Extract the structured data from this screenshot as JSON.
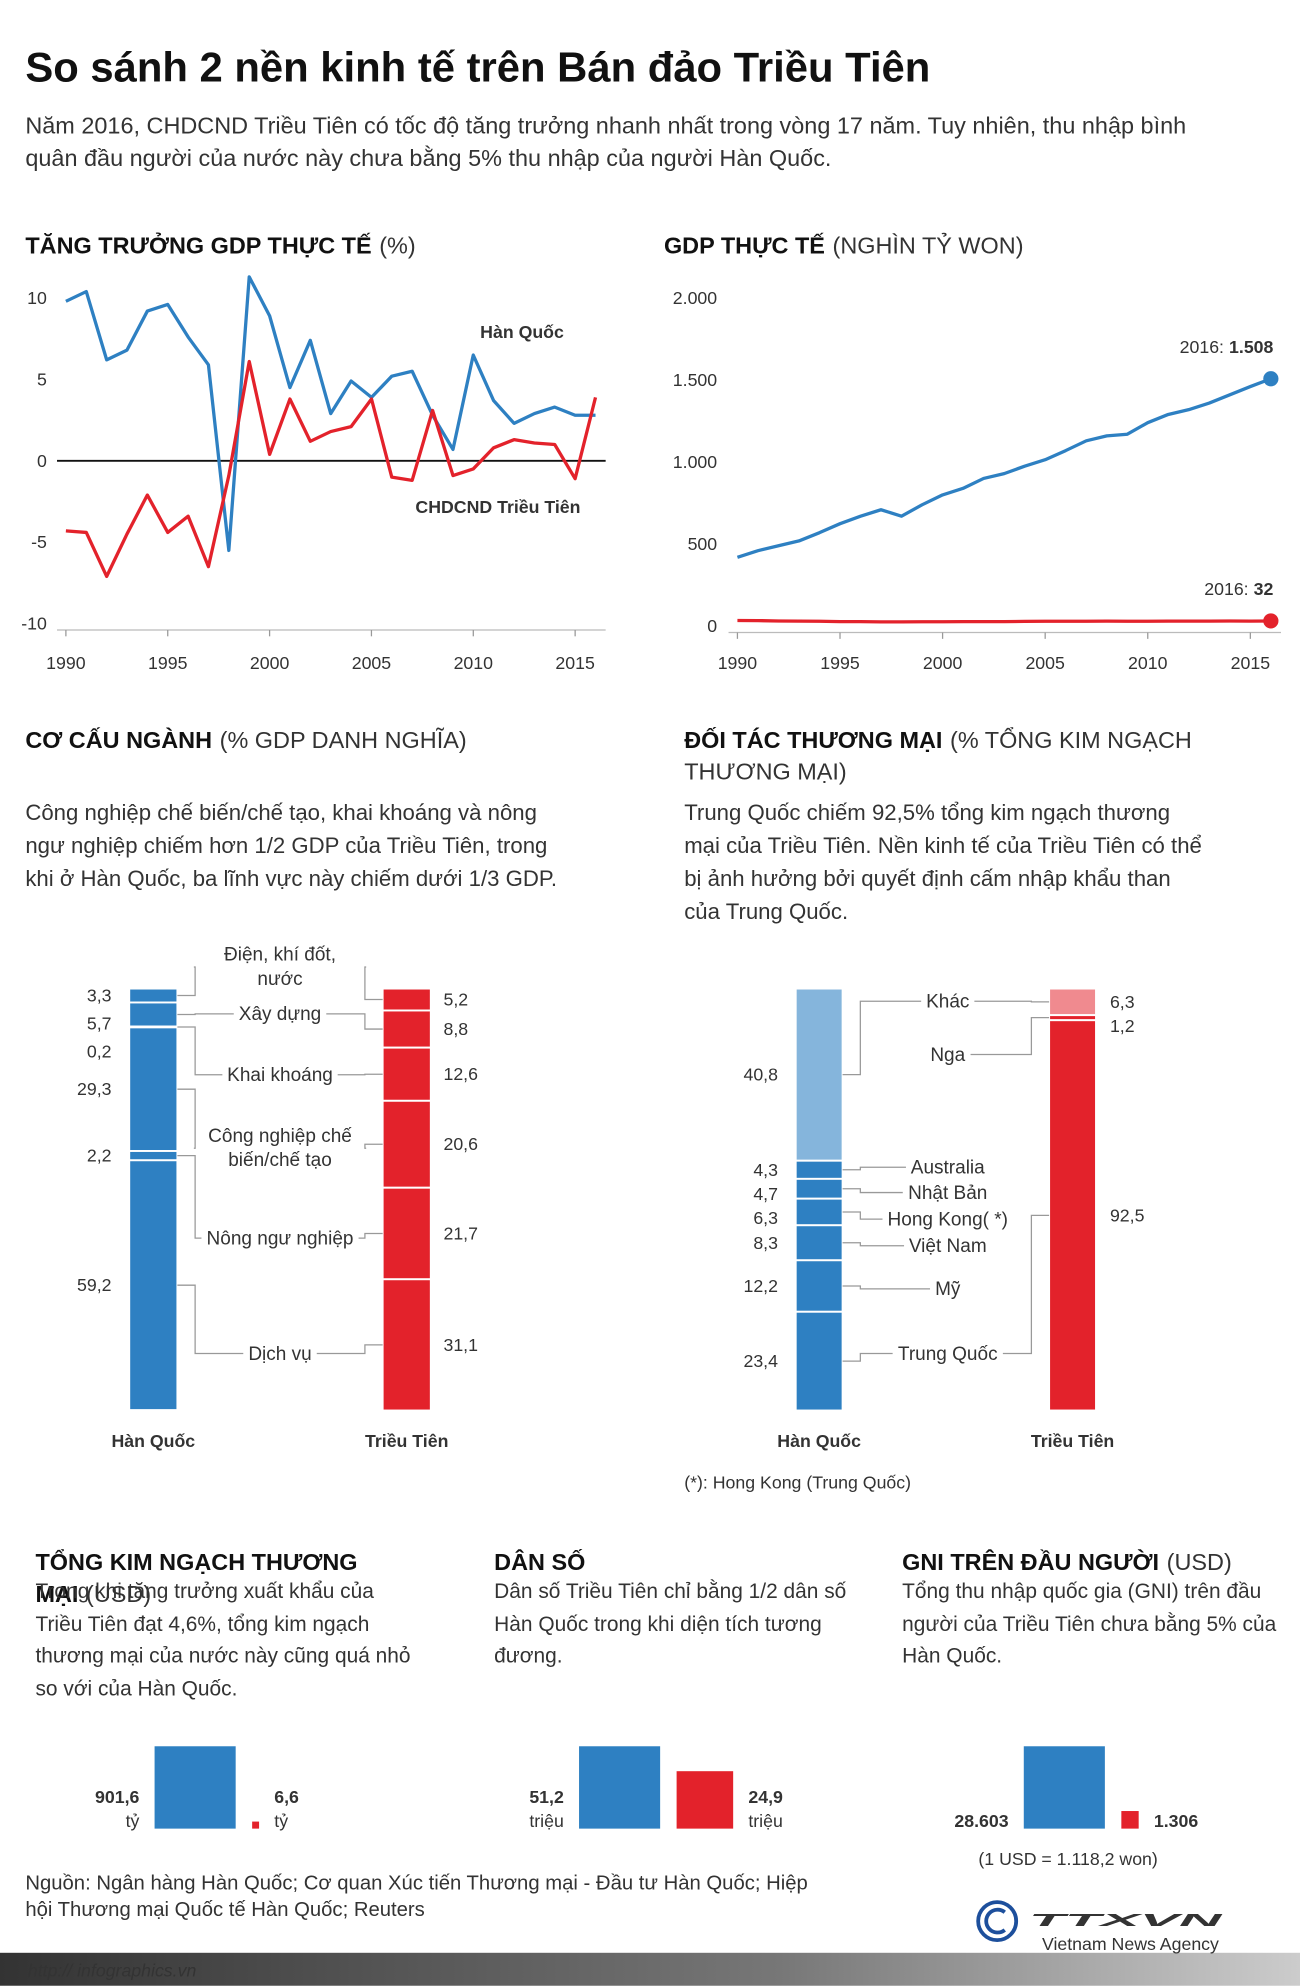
{
  "header": {
    "title": "So sánh 2 nền kinh tế trên Bán đảo Triều Tiên",
    "intro": "Năm 2016, CHDCND Triều Tiên có tốc độ tăng trưởng nhanh nhất trong vòng 17 năm. Tuy nhiên, thu nhập bình quân đầu người của nước này chưa bằng 5% thu nhập của người Hàn Quốc."
  },
  "chart_data": [
    {
      "type": "line",
      "title": "TĂNG TRƯỞNG GDP THỰC TẾ",
      "unit": "(%)",
      "x": [
        1990,
        1991,
        1992,
        1993,
        1994,
        1995,
        1996,
        1997,
        1998,
        1999,
        2000,
        2001,
        2002,
        2003,
        2004,
        2005,
        2006,
        2007,
        2008,
        2009,
        2010,
        2011,
        2012,
        2013,
        2014,
        2015,
        2016
      ],
      "xlim": [
        1990,
        2016
      ],
      "xticks": [
        1990,
        1995,
        2000,
        2005,
        2010,
        2015
      ],
      "ylim": [
        -10,
        12
      ],
      "yticks": [
        -10,
        -5,
        0,
        5,
        10
      ],
      "zero_line": true,
      "series": [
        {
          "name": "Hàn Quốc",
          "color": "#2e80c2",
          "values": [
            9.8,
            10.4,
            6.2,
            6.8,
            9.2,
            9.6,
            7.6,
            5.9,
            -5.5,
            11.3,
            8.9,
            4.5,
            7.4,
            2.9,
            4.9,
            3.9,
            5.2,
            5.5,
            2.8,
            0.7,
            6.5,
            3.7,
            2.3,
            2.9,
            3.3,
            2.8,
            2.8
          ]
        },
        {
          "name": "CHDCND Triều Tiên",
          "color": "#e3222b",
          "values": [
            -4.3,
            -4.4,
            -7.1,
            -4.5,
            -2.1,
            -4.4,
            -3.4,
            -6.5,
            -0.9,
            6.1,
            0.4,
            3.8,
            1.2,
            1.8,
            2.1,
            3.8,
            -1.0,
            -1.2,
            3.1,
            -0.9,
            -0.5,
            0.8,
            1.3,
            1.1,
            1.0,
            -1.1,
            3.9
          ]
        }
      ]
    },
    {
      "type": "line",
      "title": "GDP THỰC TẾ",
      "unit": "(NGHÌN TỶ WON)",
      "x": [
        1990,
        1991,
        1992,
        1993,
        1994,
        1995,
        1996,
        1997,
        1998,
        1999,
        2000,
        2001,
        2002,
        2003,
        2004,
        2005,
        2006,
        2007,
        2008,
        2009,
        2010,
        2011,
        2012,
        2013,
        2014,
        2015,
        2016
      ],
      "xlim": [
        1990,
        2016
      ],
      "xticks": [
        1990,
        1995,
        2000,
        2005,
        2010,
        2015
      ],
      "ylim": [
        0,
        2000
      ],
      "yticks": [
        0,
        500,
        {
          "value": 1000,
          "label": "1.000"
        },
        {
          "value": 1500,
          "label": "1.500"
        },
        {
          "value": 2000,
          "label": "2.000"
        }
      ],
      "series": [
        {
          "color": "#2e80c2",
          "values": [
            420,
            460,
            490,
            520,
            570,
            625,
            670,
            710,
            670,
            740,
            800,
            840,
            900,
            930,
            975,
            1015,
            1070,
            1130,
            1160,
            1170,
            1240,
            1290,
            1320,
            1360,
            1410,
            1460,
            1508
          ],
          "end_prefix": "2016:",
          "end_value_label": "1.508"
        },
        {
          "color": "#e3222b",
          "values": [
            35,
            34,
            32,
            31,
            30,
            28,
            28,
            26,
            26,
            27,
            27,
            28,
            28,
            28,
            29,
            30,
            30,
            30,
            31,
            30,
            30,
            31,
            31,
            31,
            32,
            31,
            32
          ],
          "end_prefix": "2016:",
          "end_value_label": "32"
        }
      ]
    },
    {
      "type": "stacked-bar",
      "title": "CƠ CẤU NGÀNH",
      "unit": "(% GDP DANH NGHĨA)",
      "description": "Công nghiệp chế biến/chế tạo, khai khoáng và nông ngư nghiệp chiếm hơn 1/2 GDP của Triều Tiên, trong khi ở Hàn Quốc, ba lĩnh vực này chiếm dưới 1/3 GDP.",
      "categories": [
        "Điện, khí đốt, nước",
        "Xây dựng",
        "Khai khoáng",
        "Công nghiệp chế biến/chế tạo",
        "Nông ngư nghiệp",
        "Dịch vụ"
      ],
      "series": [
        {
          "name": "Hàn Quốc",
          "color": "#2e80c2",
          "values": [
            3.3,
            5.7,
            0.2,
            29.3,
            2.2,
            59.2
          ],
          "value_labels": [
            "3,3",
            "5,7",
            "0,2",
            "29,3",
            "2,2",
            "59,2"
          ]
        },
        {
          "name": "Triều Tiên",
          "color": "#e3222b",
          "values": [
            5.2,
            8.8,
            12.6,
            20.6,
            21.7,
            31.1
          ],
          "value_labels": [
            "5,2",
            "8,8",
            "12,6",
            "20,6",
            "21,7",
            "31,1"
          ]
        }
      ]
    },
    {
      "type": "stacked-bar",
      "title": "ĐỐI TÁC THƯƠNG MẠI",
      "unit": "(% TỔNG KIM NGẠCH THƯƠNG MẠI)",
      "description": "Trung Quốc chiếm 92,5% tổng kim ngạch thương mại của Triều Tiên. Nền kinh tế của Triều Tiên có thể bị ảnh hưởng bởi quyết định cấm nhập khẩu than của Trung Quốc.",
      "categories": [
        "Khác",
        "Nga",
        "Australia",
        "Nhật Bản",
        "Hong Kong( *)",
        "Việt Nam",
        "Mỹ",
        "Trung Quốc"
      ],
      "series": [
        {
          "name": "Hàn Quốc",
          "color": "#2e80c2",
          "colors": [
            "#85b5dc",
            null,
            "#2e80c2",
            "#2e80c2",
            "#2e80c2",
            "#2e80c2",
            "#2e80c2",
            "#2e80c2"
          ],
          "values": [
            40.8,
            null,
            4.3,
            4.7,
            6.3,
            8.3,
            12.2,
            23.4
          ],
          "value_labels": [
            "40,8",
            null,
            "4,3",
            "4,7",
            "6,3",
            "8,3",
            "12,2",
            "23,4"
          ]
        },
        {
          "name": "Triều Tiên",
          "color": "#e3222b",
          "colors": [
            "#f08a8f",
            "#e3222b",
            null,
            null,
            null,
            null,
            null,
            "#e3222b"
          ],
          "values": [
            6.3,
            1.2,
            null,
            null,
            null,
            null,
            null,
            92.5
          ],
          "value_labels": [
            "6,3",
            "1,2",
            null,
            null,
            null,
            null,
            null,
            "92,5"
          ]
        }
      ],
      "note": "(*): Hong Kong (Trung Quốc)"
    },
    {
      "type": "bar",
      "title": "TỔNG KIM NGẠCH THƯƠNG MẠI",
      "unit": "(USD)",
      "description": "Trong khi tăng trưởng xuất khẩu của Triều Tiên đạt 4,6%, tổng kim ngạch thương mại của nước này cũng quá nhỏ so với của Hàn Quốc.",
      "values": [
        901.6,
        6.6
      ],
      "value_labels": [
        "901,6",
        "6,6"
      ],
      "value_units": [
        "tỷ",
        "tỷ"
      ],
      "colors": [
        "#2e80c2",
        "#e3222b"
      ]
    },
    {
      "type": "bar",
      "title": "DÂN SỐ",
      "description": "Dân số Triều Tiên chỉ bằng 1/2 dân số Hàn Quốc trong khi diện tích tương đương.",
      "values": [
        51.2,
        24.9
      ],
      "value_labels": [
        "51,2",
        "24,9"
      ],
      "value_units": [
        "triệu",
        "triệu"
      ],
      "colors": [
        "#2e80c2",
        "#e3222b"
      ]
    },
    {
      "type": "bar",
      "title": "GNI TRÊN ĐẦU NGƯỜI",
      "unit": "(USD)",
      "description": "Tổng thu nhập quốc gia (GNI) trên đầu người của Triều Tiên chưa bằng 5% của Hàn Quốc.",
      "values": [
        28603,
        1306
      ],
      "value_labels": [
        "28.603",
        "1.306"
      ],
      "colors": [
        "#2e80c2",
        "#e3222b"
      ],
      "note": "(1 USD = 1.118,2 won)"
    }
  ],
  "footer": {
    "source": "Nguồn: Ngân hàng Hàn Quốc; Cơ quan Xúc tiến Thương mại - Đầu tư Hàn Quốc; Hiệp hội Thương mại Quốc tế Hàn Quốc; Reuters",
    "url": "http:// infographics.vn",
    "logo": "TTXVN",
    "logo_subtitle": "Vietnam News Agency"
  }
}
